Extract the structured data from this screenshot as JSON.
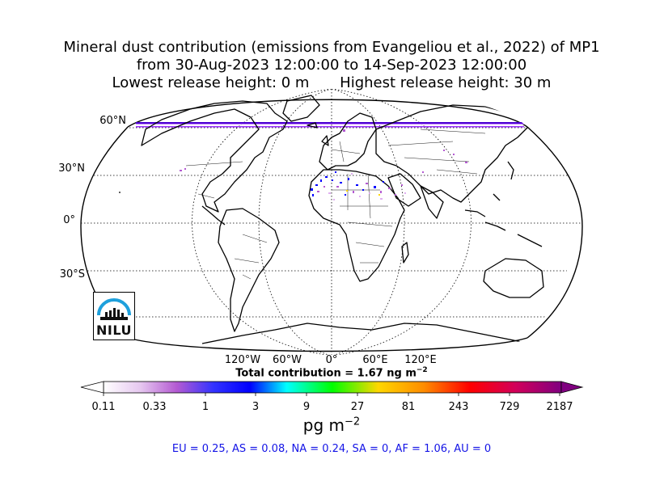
{
  "title": {
    "line1": "Mineral dust contribution (emissions from Evangeliou et al., 2022) of MP1",
    "line2": "from 30-Aug-2023 12:00:00 to 14-Sep-2023 12:00:00",
    "lowest_release": "Lowest release height: 0 m",
    "highest_release": "Highest release height: 30 m"
  },
  "map": {
    "projection": "Robinson",
    "lat_labels": [
      "60°N",
      "30°N",
      "0°",
      "30°S"
    ],
    "lon_labels": [
      "120°W",
      "60°W",
      "0°",
      "60°E",
      "120°E"
    ],
    "gridlines": "dotted",
    "coastlines": true,
    "country_borders": true
  },
  "total_contribution": {
    "label": "Total contribution = 1.67 ng m",
    "exponent": "−2"
  },
  "colorbar": {
    "ticks": [
      "0.11",
      "0.33",
      "1",
      "3",
      "9",
      "27",
      "81",
      "243",
      "729",
      "2187"
    ],
    "unit": "pg m",
    "unit_exponent": "−2",
    "extend": "both",
    "colors": [
      "#ffffff",
      "#e6c8f0",
      "#b45ad2",
      "#0000ff",
      "#00ffff",
      "#00ff00",
      "#ffd700",
      "#ff8c00",
      "#ff0000",
      "#d2005a",
      "#800080"
    ]
  },
  "regions": "EU = 0.25,  AS = 0.08,  NA = 0.24,  SA = 0,  AF = 1.06,  AU = 0",
  "logo": {
    "text": "NILU"
  }
}
